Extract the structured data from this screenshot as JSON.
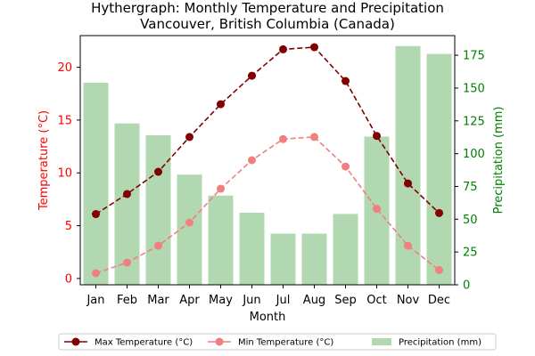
{
  "chart_data": {
    "type": "bar+line",
    "title": "Hythergraph: Monthly Temperature and Precipitation",
    "subtitle": "Vancouver, British Columbia (Canada)",
    "xlabel": "Month",
    "ylabel_left": "Temperature (°C)",
    "ylabel_right": "Precipitation (mm)",
    "categories": [
      "Jan",
      "Feb",
      "Mar",
      "Apr",
      "May",
      "Jun",
      "Jul",
      "Aug",
      "Sep",
      "Oct",
      "Nov",
      "Dec"
    ],
    "ylim_left": [
      -0.6,
      23
    ],
    "ylim_right": [
      0,
      190
    ],
    "yticks_left": [
      0,
      5,
      10,
      15,
      20
    ],
    "yticks_right": [
      0,
      25,
      50,
      75,
      100,
      125,
      150,
      175
    ],
    "series": [
      {
        "name": "Precipitation (mm)",
        "kind": "bar",
        "axis": "right",
        "color": "#b2d8b2",
        "values": [
          154,
          123,
          114,
          84,
          68,
          55,
          39,
          39,
          54,
          113,
          182,
          176
        ]
      },
      {
        "name": "Max Temperature (°C)",
        "kind": "line",
        "axis": "left",
        "color": "#800000",
        "values": [
          6.1,
          8.0,
          10.1,
          13.4,
          16.5,
          19.2,
          21.7,
          21.9,
          18.7,
          13.5,
          9.0,
          6.2
        ]
      },
      {
        "name": "Min Temperature (°C)",
        "kind": "line",
        "axis": "left",
        "color": "#f08080",
        "values": [
          0.5,
          1.5,
          3.1,
          5.3,
          8.5,
          11.2,
          13.2,
          13.4,
          10.6,
          6.6,
          3.1,
          0.8
        ]
      }
    ],
    "legend": {
      "position": "bottom-center",
      "items": [
        "Max Temperature (°C)",
        "Min Temperature (°C)",
        "Precipitation (mm)"
      ]
    },
    "colors": {
      "left_axis": "#ff0000",
      "right_axis": "#008000"
    },
    "grid": false
  }
}
